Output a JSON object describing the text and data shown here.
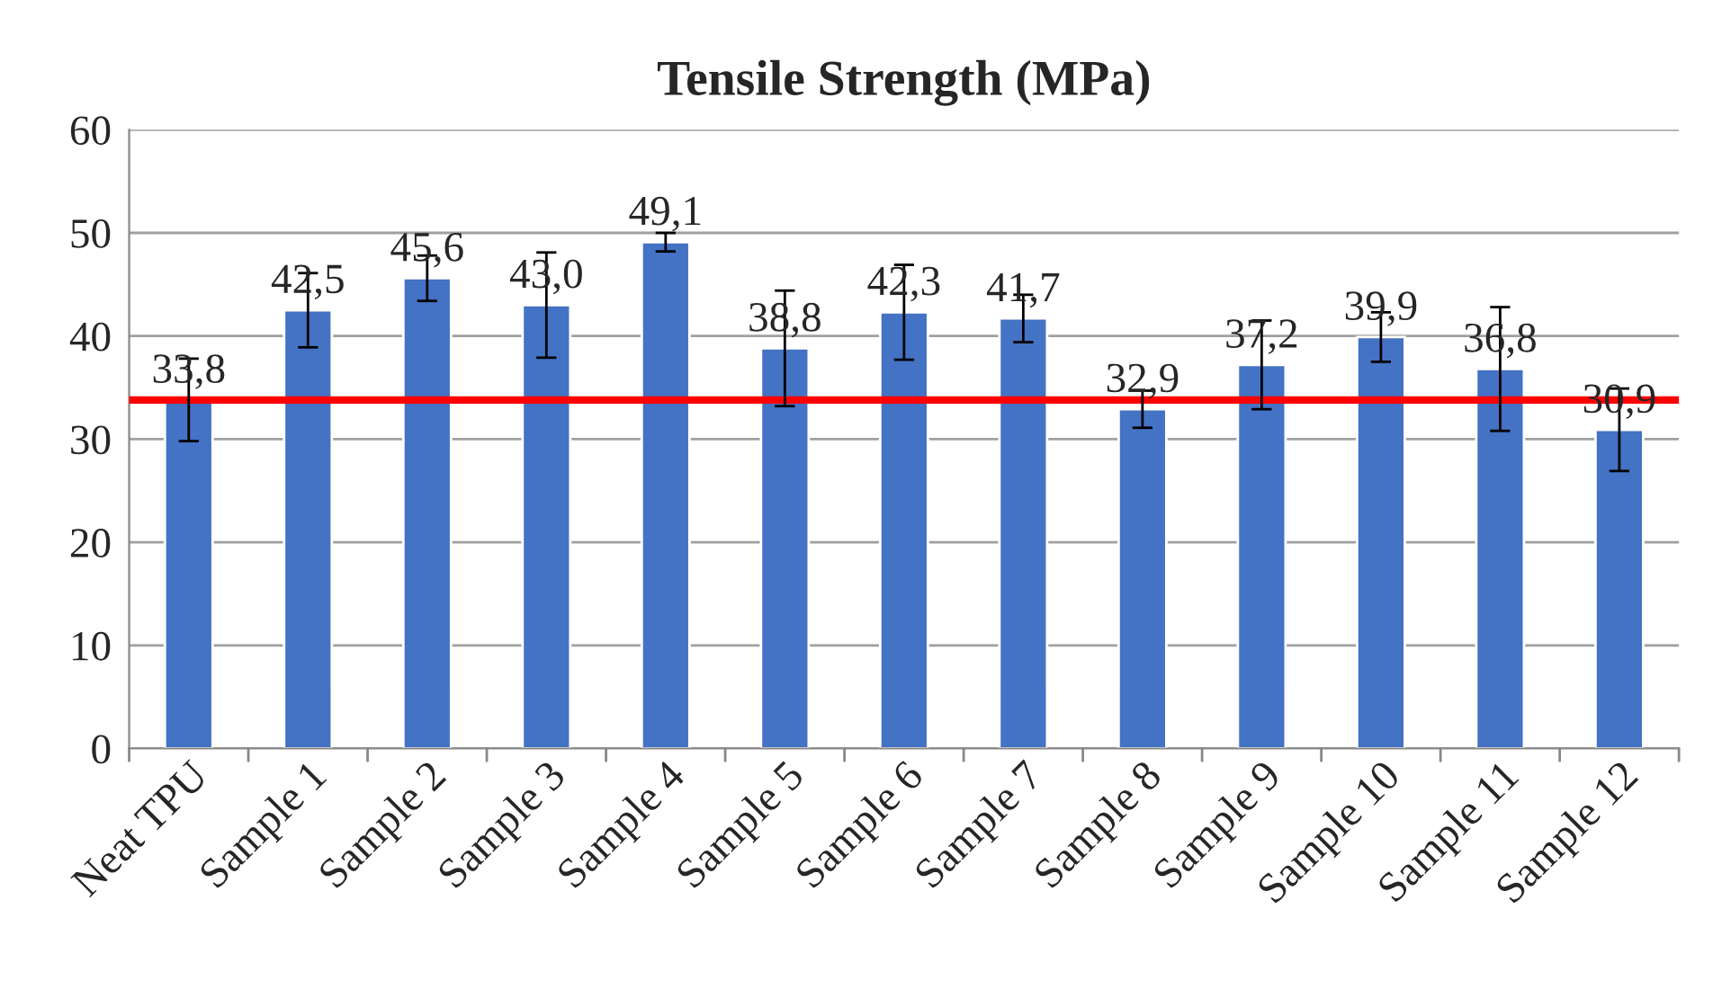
{
  "chart_data": {
    "type": "bar",
    "title": "Tensile Strength (MPa)",
    "categories": [
      "Neat TPU",
      "Sample 1",
      "Sample 2",
      "Sample 3",
      "Sample 4",
      "Sample 5",
      "Sample 6",
      "Sample 7",
      "Sample 8",
      "Sample 9",
      "Sample 10",
      "Sample 11",
      "Sample 12"
    ],
    "values": [
      33.8,
      42.5,
      45.6,
      43.0,
      49.1,
      38.8,
      42.3,
      41.7,
      32.9,
      37.2,
      39.9,
      36.8,
      30.9
    ],
    "value_labels": [
      "33,8",
      "42,5",
      "45,6",
      "43,0",
      "49,1",
      "38,8",
      "42,3",
      "41,7",
      "32,9",
      "37,2",
      "39,9",
      "36,8",
      "30,9"
    ],
    "errors": [
      4.0,
      3.6,
      2.2,
      5.1,
      0.9,
      5.6,
      4.6,
      2.3,
      1.8,
      4.3,
      2.4,
      6.0,
      4.0
    ],
    "color": "#4472c4",
    "ylim": [
      0,
      60
    ],
    "yticks": [
      0,
      10,
      20,
      30,
      40,
      50,
      60
    ],
    "grid": "y",
    "ref_lines": [
      {
        "axis": "y",
        "value": 33.8,
        "color": "#ff0000",
        "line_style": "solid"
      }
    ]
  }
}
